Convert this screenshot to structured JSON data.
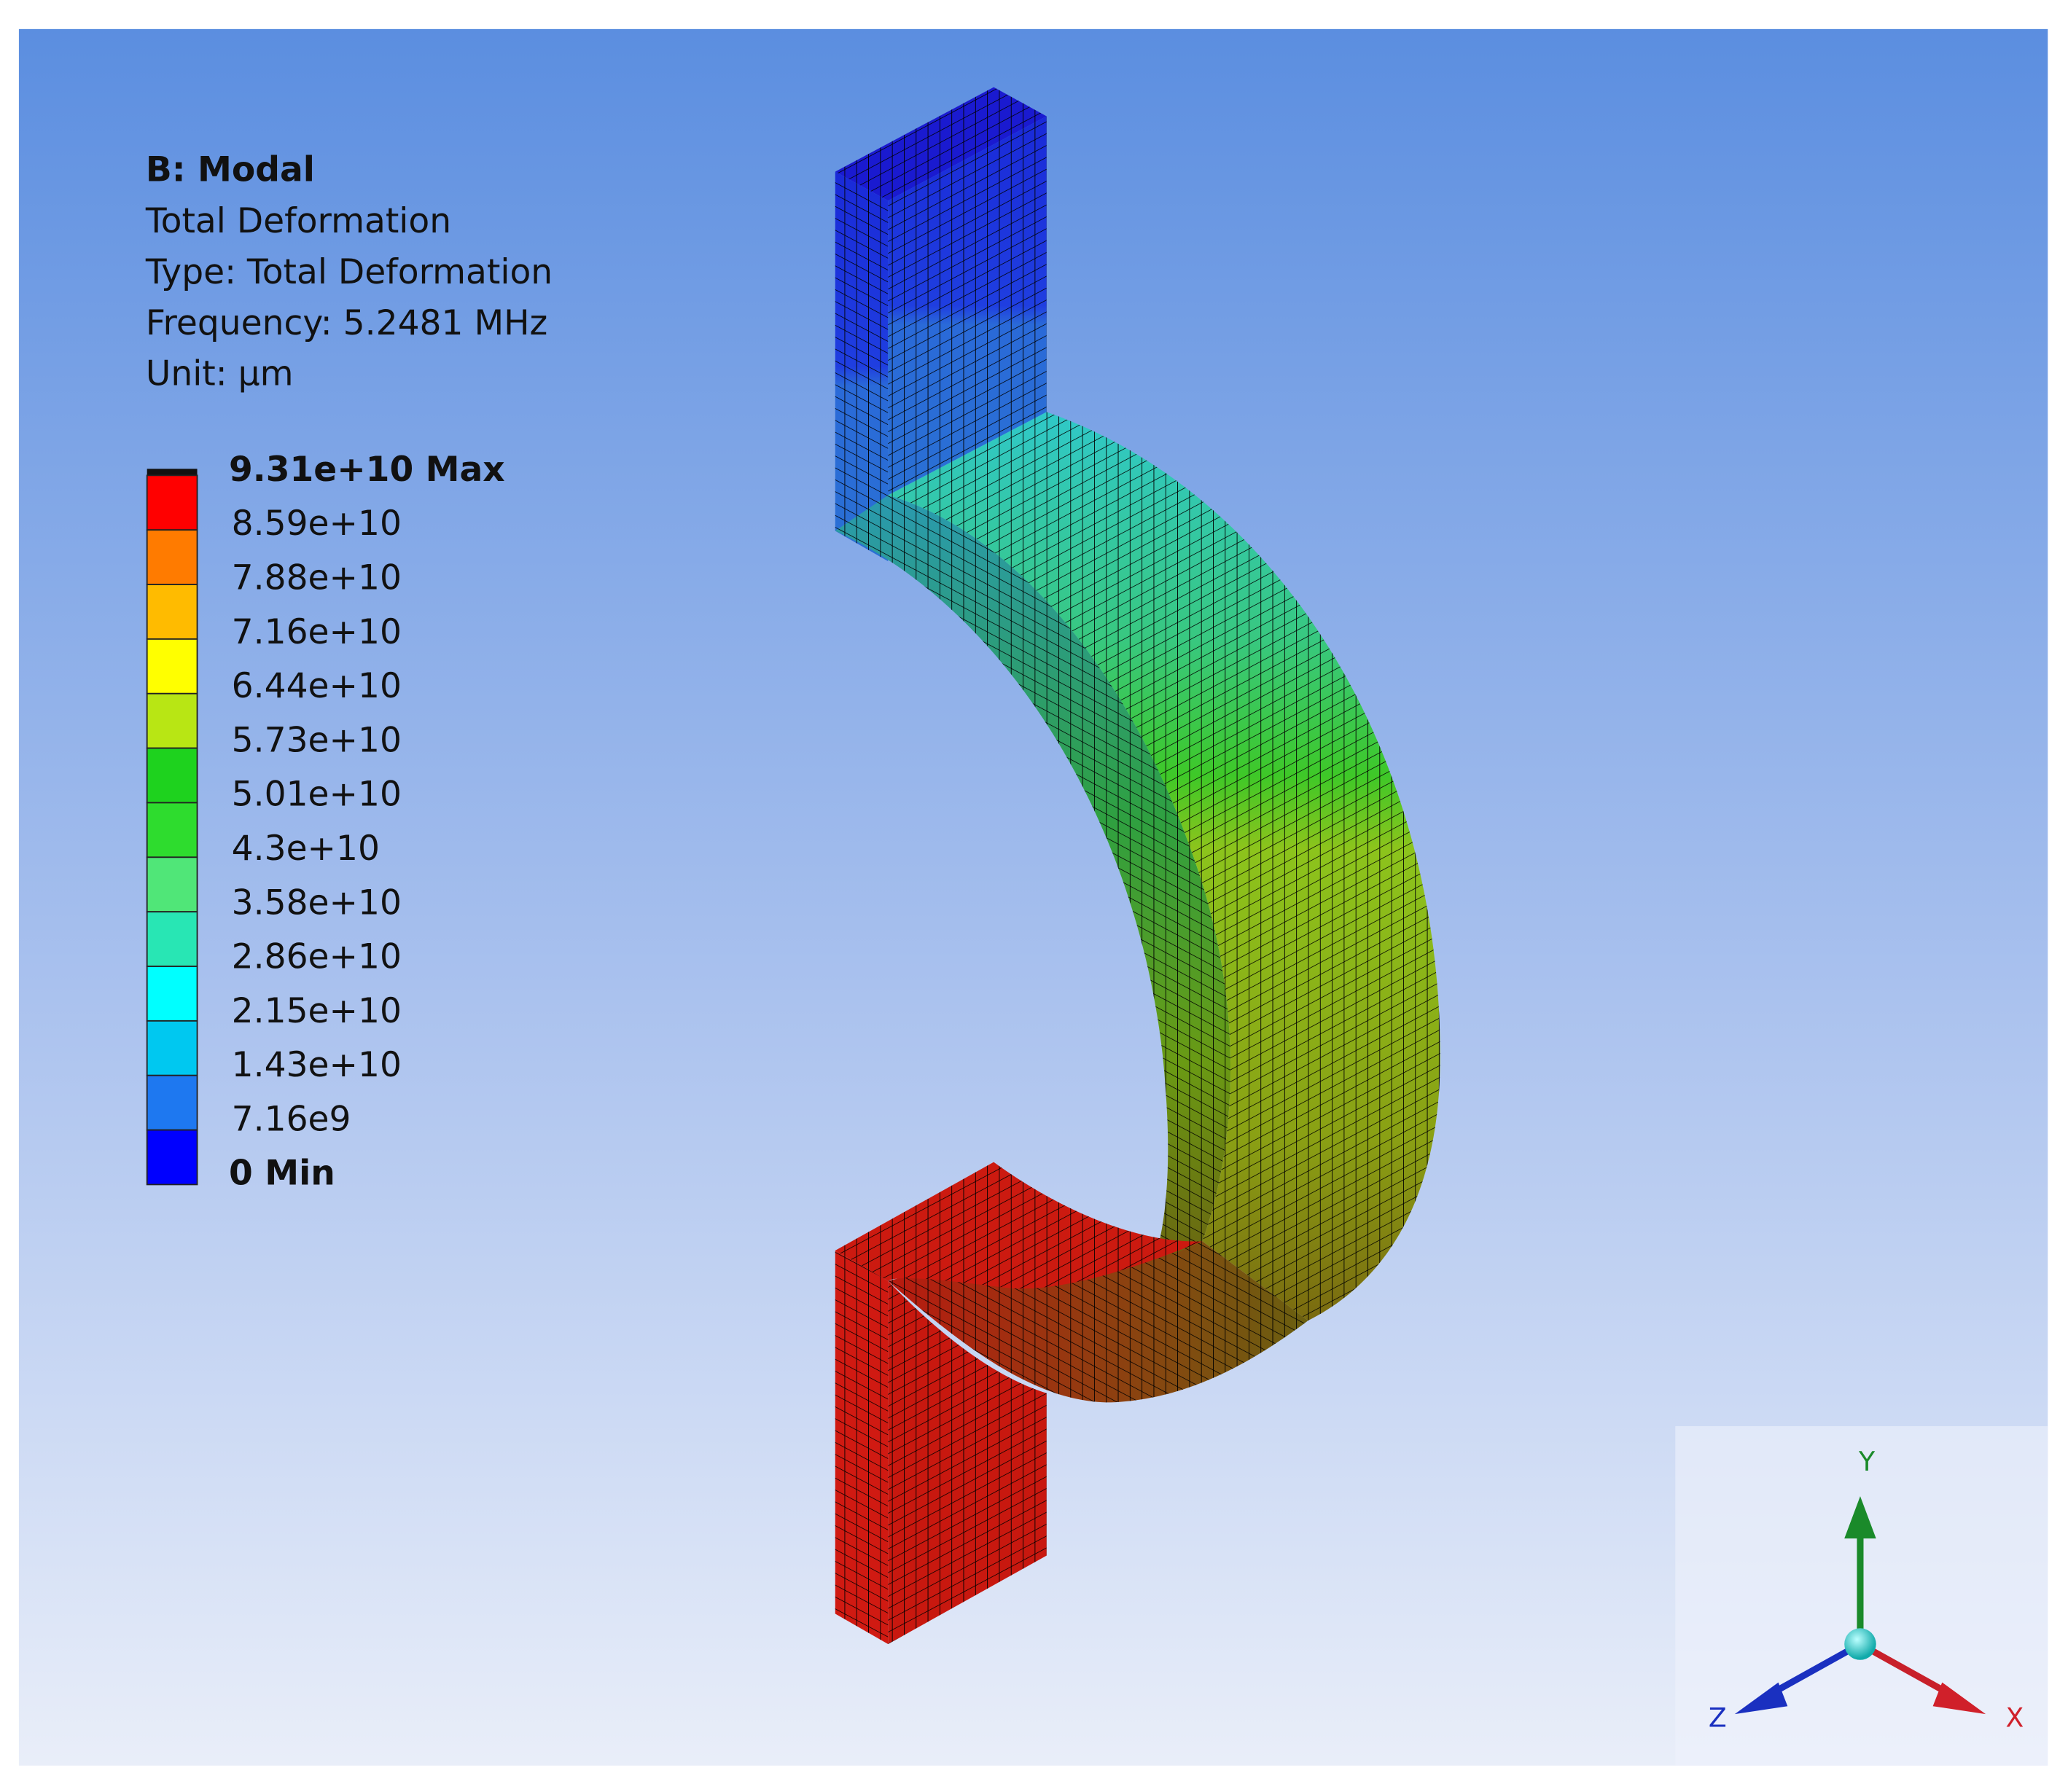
{
  "header": {
    "title": "B: Modal",
    "lines": [
      "Total Deformation",
      "Type: Total Deformation",
      "Frequency: 5.2481 MHz",
      "Unit: µm"
    ]
  },
  "legend": {
    "labels": [
      "9.31e+10 Max",
      "8.59e+10",
      "7.88e+10",
      "7.16e+10",
      "6.44e+10",
      "5.73e+10",
      "5.01e+10",
      "4.3e+10",
      "3.58e+10",
      "2.86e+10",
      "2.15e+10",
      "1.43e+10",
      "7.16e9",
      "0 Min"
    ],
    "colors": [
      "#ff0000",
      "#ff7b00",
      "#ffbb00",
      "#ffff00",
      "#b8e614",
      "#1ed21e",
      "#2edc2e",
      "#50e678",
      "#28e6b4",
      "#00ffff",
      "#00c8f0",
      "#1e78f0",
      "#0000ff"
    ]
  },
  "triad": {
    "y": "Y",
    "z": "Z",
    "x": "X"
  }
}
